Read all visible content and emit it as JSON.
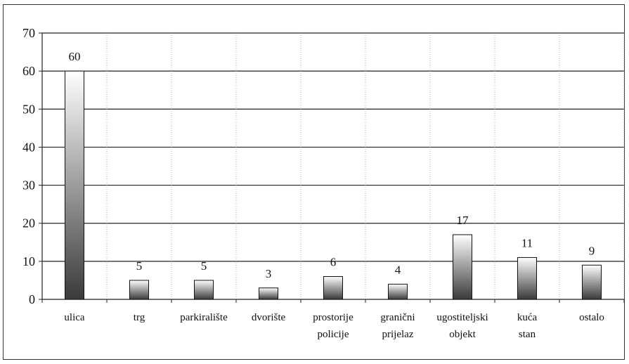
{
  "chart_data": {
    "type": "bar",
    "categories": [
      [
        "ulica"
      ],
      [
        "trg"
      ],
      [
        "parkiralište"
      ],
      [
        "dvorište"
      ],
      [
        "prostorije",
        "policije"
      ],
      [
        "granični",
        "prijelaz"
      ],
      [
        "ugostiteljski",
        "objekt"
      ],
      [
        "kuća",
        "stan"
      ],
      [
        "ostalo"
      ]
    ],
    "values": [
      60,
      5,
      5,
      3,
      6,
      4,
      17,
      11,
      9
    ],
    "data_labels": [
      "60",
      "5",
      "5",
      "3",
      "6",
      "4",
      "17",
      "11",
      "9"
    ],
    "ylim": [
      0,
      70
    ],
    "yticks": [
      0,
      10,
      20,
      30,
      40,
      50,
      60,
      70
    ],
    "grid": "horizontal",
    "legend": "none",
    "title": "",
    "xlabel": "",
    "ylabel": ""
  }
}
